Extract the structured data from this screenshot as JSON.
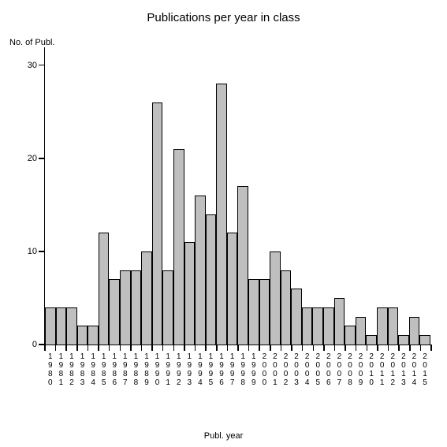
{
  "chart": {
    "type": "bar",
    "title": "Publications per year in class",
    "title_fontsize": 15,
    "ylabel": "No. of Publ.",
    "xlabel": "Publ. year",
    "label_fontsize": 11,
    "categories": [
      "1980",
      "1981",
      "1982",
      "1983",
      "1984",
      "1985",
      "1986",
      "1987",
      "1988",
      "1989",
      "1990",
      "1991",
      "1992",
      "1993",
      "1994",
      "1995",
      "1996",
      "1997",
      "1998",
      "1999",
      "2000",
      "2001",
      "2002",
      "2003",
      "2004",
      "2005",
      "2006",
      "2007",
      "2008",
      "2009",
      "2010",
      "2011",
      "2012",
      "2013",
      "2014",
      "2015"
    ],
    "values": [
      4,
      4,
      4,
      2,
      2,
      12,
      7,
      8,
      8,
      10,
      26,
      8,
      21,
      11,
      16,
      14,
      28,
      12,
      17,
      7,
      7,
      10,
      8,
      6,
      4,
      4,
      4,
      5,
      2,
      3,
      1,
      4,
      4,
      1,
      3,
      1
    ],
    "yticks": [
      0,
      10,
      20,
      30
    ],
    "ylim": [
      0,
      32
    ],
    "bar_color": "#bfbfbf",
    "bar_border_color": "#000000",
    "axis_color": "#000000",
    "background_color": "#ffffff",
    "tick_fontsize": 11,
    "xtick_fontsize": 10
  }
}
